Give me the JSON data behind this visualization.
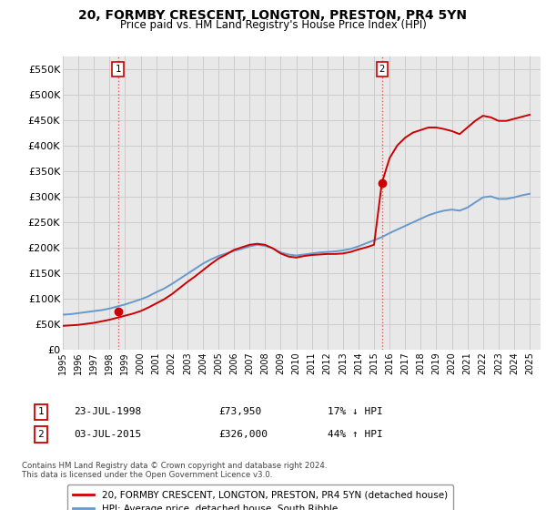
{
  "title": "20, FORMBY CRESCENT, LONGTON, PRESTON, PR4 5YN",
  "subtitle": "Price paid vs. HM Land Registry's House Price Index (HPI)",
  "title_fontsize": 10,
  "subtitle_fontsize": 8.5,
  "background_color": "#ffffff",
  "grid_color": "#cccccc",
  "plot_bg": "#e8e8e8",
  "ylabel_ticks": [
    "£0",
    "£50K",
    "£100K",
    "£150K",
    "£200K",
    "£250K",
    "£300K",
    "£350K",
    "£400K",
    "£450K",
    "£500K",
    "£550K"
  ],
  "ytick_values": [
    0,
    50000,
    100000,
    150000,
    200000,
    250000,
    300000,
    350000,
    400000,
    450000,
    500000,
    550000
  ],
  "ylim": [
    0,
    575000
  ],
  "xlim_start": 1995.3,
  "xlim_end": 2025.7,
  "xtick_years": [
    1995,
    1996,
    1997,
    1998,
    1999,
    2000,
    2001,
    2002,
    2003,
    2004,
    2005,
    2006,
    2007,
    2008,
    2009,
    2010,
    2011,
    2012,
    2013,
    2014,
    2015,
    2016,
    2017,
    2018,
    2019,
    2020,
    2021,
    2022,
    2023,
    2024,
    2025
  ],
  "sale1_x": 1998.54,
  "sale1_y": 73950,
  "sale1_label": "1",
  "sale2_x": 2015.5,
  "sale2_y": 326000,
  "sale2_label": "2",
  "sale_color": "#cc0000",
  "sale_marker_size": 6,
  "vline_color": "#cc0000",
  "vline_alpha": 0.6,
  "vline_style": ":",
  "legend_sale_label": "20, FORMBY CRESCENT, LONGTON, PRESTON, PR4 5YN (detached house)",
  "legend_hpi_label": "HPI: Average price, detached house, South Ribble",
  "sale_line_color": "#cc0000",
  "hpi_line_color": "#6699cc",
  "table_row1_num": "1",
  "table_row1_date": "23-JUL-1998",
  "table_row1_price": "£73,950",
  "table_row1_hpi": "17% ↓ HPI",
  "table_row2_num": "2",
  "table_row2_date": "03-JUL-2015",
  "table_row2_price": "£326,000",
  "table_row2_hpi": "44% ↑ HPI",
  "footer": "Contains HM Land Registry data © Crown copyright and database right 2024.\nThis data is licensed under the Open Government Licence v3.0.",
  "hpi_years": [
    1995,
    1995.5,
    1996,
    1996.5,
    1997,
    1997.5,
    1998,
    1998.5,
    1999,
    1999.5,
    2000,
    2000.5,
    2001,
    2001.5,
    2002,
    2002.5,
    2003,
    2003.5,
    2004,
    2004.5,
    2005,
    2005.5,
    2006,
    2006.5,
    2007,
    2007.5,
    2008,
    2008.5,
    2009,
    2009.5,
    2010,
    2010.5,
    2011,
    2011.5,
    2012,
    2012.5,
    2013,
    2013.5,
    2014,
    2014.5,
    2015,
    2015.5,
    2016,
    2016.5,
    2017,
    2017.5,
    2018,
    2018.5,
    2019,
    2019.5,
    2020,
    2020.5,
    2021,
    2021.5,
    2022,
    2022.5,
    2023,
    2023.5,
    2024,
    2024.5,
    2025
  ],
  "hpi_values": [
    68000,
    69000,
    71000,
    73000,
    75000,
    77000,
    80000,
    84000,
    88000,
    93000,
    98000,
    104000,
    112000,
    119000,
    128000,
    138000,
    148000,
    158000,
    168000,
    176000,
    183000,
    188000,
    193000,
    197000,
    202000,
    205000,
    203000,
    198000,
    190000,
    186000,
    184000,
    186000,
    188000,
    190000,
    191000,
    192000,
    194000,
    197000,
    202000,
    208000,
    214000,
    220000,
    228000,
    235000,
    242000,
    249000,
    256000,
    263000,
    268000,
    272000,
    274000,
    272000,
    278000,
    288000,
    298000,
    300000,
    295000,
    295000,
    298000,
    302000,
    305000
  ],
  "sale_years": [
    1995,
    1995.5,
    1996,
    1996.5,
    1997,
    1997.5,
    1998,
    1998.5,
    1999,
    1999.5,
    2000,
    2000.5,
    2001,
    2001.5,
    2002,
    2002.5,
    2003,
    2003.5,
    2004,
    2004.5,
    2005,
    2005.5,
    2006,
    2006.5,
    2007,
    2007.5,
    2008,
    2008.5,
    2009,
    2009.5,
    2010,
    2010.5,
    2011,
    2011.5,
    2012,
    2012.5,
    2013,
    2013.5,
    2014,
    2014.5,
    2015,
    2015.5,
    2016,
    2016.5,
    2017,
    2017.5,
    2018,
    2018.5,
    2019,
    2019.5,
    2020,
    2020.5,
    2021,
    2021.5,
    2022,
    2022.5,
    2023,
    2023.5,
    2024,
    2024.5,
    2025
  ],
  "sale_values": [
    46000,
    47000,
    48000,
    50000,
    52000,
    55000,
    58000,
    62000,
    66000,
    70000,
    75000,
    82000,
    90000,
    98000,
    108000,
    120000,
    132000,
    143000,
    155000,
    167000,
    178000,
    186000,
    195000,
    200000,
    205000,
    207000,
    205000,
    198000,
    188000,
    182000,
    180000,
    183000,
    185000,
    186000,
    187000,
    187000,
    188000,
    191000,
    196000,
    200000,
    205000,
    326000,
    375000,
    400000,
    415000,
    425000,
    430000,
    435000,
    435000,
    432000,
    428000,
    422000,
    435000,
    448000,
    458000,
    455000,
    448000,
    448000,
    452000,
    456000,
    460000
  ]
}
